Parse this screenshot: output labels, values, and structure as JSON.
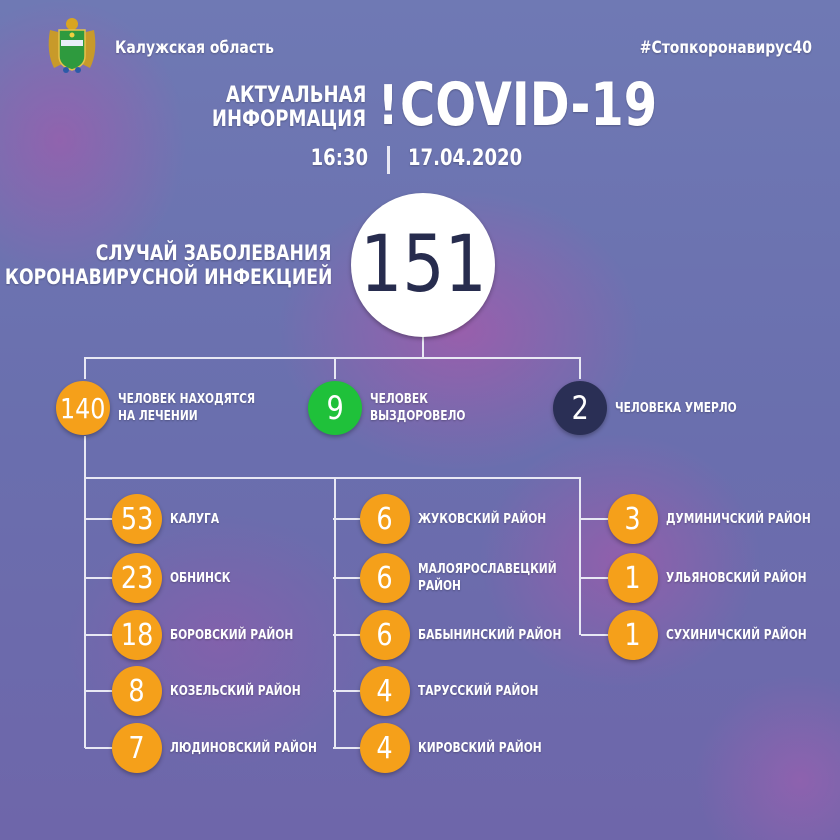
{
  "header": {
    "region": "Калужская область",
    "hashtag": "#Стопкоронавирус40",
    "title_line1": "АКТУАЛЬНАЯ",
    "title_line2": "ИНФОРМАЦИЯ",
    "exclaim": "!",
    "title_main": "COVID-19",
    "time": "16:30",
    "date": "17.04.2020"
  },
  "total": {
    "label_line1": "СЛУЧАЙ ЗАБОЛЕВАНИЯ",
    "label_line2": "КОРОНАВИРУСНОЙ ИНФЕКЦИЕЙ",
    "value": "151"
  },
  "summary": [
    {
      "value": "140",
      "label": "ЧЕЛОВЕК НАХОДЯТСЯ\nНА ЛЕЧЕНИИ",
      "color": "#f5a01a"
    },
    {
      "value": "9",
      "label": "ЧЕЛОВЕК\nВЫЗДОРОВЕЛО",
      "color": "#1fc13a"
    },
    {
      "value": "2",
      "label": "ЧЕЛОВЕКА УМЕРЛО",
      "color": "#2a2f55"
    }
  ],
  "districts_color": "#f5a01a",
  "districts": [
    [
      {
        "value": "53",
        "label": "КАЛУГА"
      },
      {
        "value": "23",
        "label": "ОБНИНСК"
      },
      {
        "value": "18",
        "label": "БОРОВСКИЙ РАЙОН"
      },
      {
        "value": "8",
        "label": "КОЗЕЛЬСКИЙ РАЙОН"
      },
      {
        "value": "7",
        "label": "ЛЮДИНОВСКИЙ РАЙОН"
      }
    ],
    [
      {
        "value": "6",
        "label": "ЖУКОВСКИЙ РАЙОН"
      },
      {
        "value": "6",
        "label": "МАЛОЯРОСЛАВЕЦКИЙ\nРАЙОН"
      },
      {
        "value": "6",
        "label": "БАБЫНИНСКИЙ РАЙОН"
      },
      {
        "value": "4",
        "label": "ТАРУССКИЙ РАЙОН"
      },
      {
        "value": "4",
        "label": "КИРОВСКИЙ РАЙОН"
      }
    ],
    [
      {
        "value": "3",
        "label": "ДУМИНИЧСКИЙ РАЙОН"
      },
      {
        "value": "1",
        "label": "УЛЬЯНОВСКИЙ РАЙОН"
      },
      {
        "value": "1",
        "label": "СУХИНИЧСКИЙ РАЙОН"
      }
    ]
  ]
}
